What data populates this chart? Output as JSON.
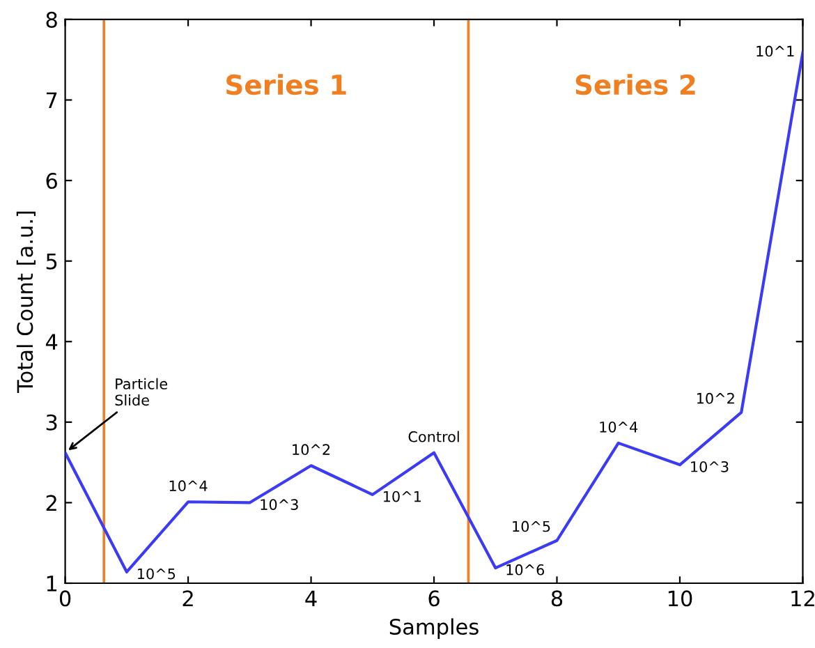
{
  "chart_data": {
    "type": "line",
    "xlabel": "Samples",
    "ylabel": "Total Count [a.u.]",
    "x": [
      0,
      1,
      2,
      3,
      4,
      5,
      6,
      7,
      8,
      9,
      10,
      11,
      12
    ],
    "series": [
      {
        "color": "#3b3bf5",
        "values": [
          2.62,
          1.14,
          2.01,
          2.0,
          2.46,
          2.1,
          2.62,
          1.19,
          1.53,
          2.74,
          2.47,
          3.12,
          7.59
        ]
      }
    ],
    "xlim": [
      0,
      12
    ],
    "ylim": [
      1,
      8
    ],
    "xticks": [
      0,
      2,
      4,
      6,
      8,
      10,
      12
    ],
    "yticks": [
      1,
      2,
      3,
      4,
      5,
      6,
      7,
      8
    ],
    "grid": false,
    "marker": "none",
    "line_style": "solid",
    "ref_lines": [
      {
        "axis": "x",
        "value": 0.63,
        "color": "#f07f22"
      },
      {
        "axis": "x",
        "value": 6.56,
        "color": "#f07f22"
      }
    ],
    "annotations": [
      "Series 1",
      "Series 2",
      {
        "text": "Particle\nSlide",
        "x": 0,
        "y": 2.62
      },
      {
        "text": "10^5",
        "x": 1,
        "y": 1.14
      },
      {
        "text": "10^4",
        "x": 2,
        "y": 2.01
      },
      {
        "text": "10^3",
        "x": 3,
        "y": 2.0
      },
      {
        "text": "10^2",
        "x": 4,
        "y": 2.46
      },
      {
        "text": "10^1",
        "x": 5,
        "y": 2.1
      },
      {
        "text": "Control",
        "x": 6,
        "y": 2.62
      },
      {
        "text": "10^6",
        "x": 7,
        "y": 1.19
      },
      {
        "text": "10^5",
        "x": 8,
        "y": 1.53
      },
      {
        "text": "10^4",
        "x": 9,
        "y": 2.74
      },
      {
        "text": "10^3",
        "x": 10,
        "y": 2.47
      },
      {
        "text": "10^2",
        "x": 11,
        "y": 3.12
      },
      {
        "text": "10^1",
        "x": 12,
        "y": 7.59
      }
    ]
  }
}
